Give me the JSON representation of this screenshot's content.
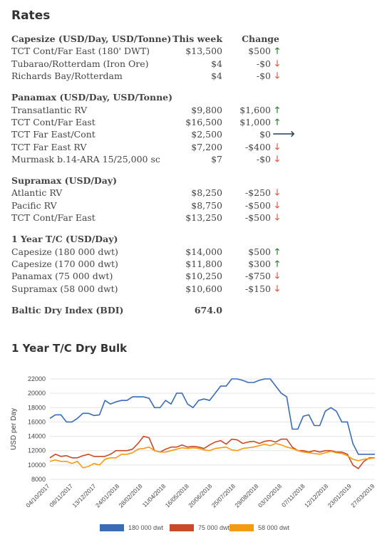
{
  "title": "Rates",
  "sections": [
    {
      "header": {
        "label": "Capesize (USD/Day, USD/Tonne)",
        "week": "This week",
        "change": "Change"
      },
      "rows": [
        {
          "label": "TCT Cont/Far East (180' DWT)",
          "week": "$13,500",
          "change": "$500",
          "dir": "up"
        },
        {
          "label": "Tubarao/Rotterdam (Iron Ore)",
          "week": "$4",
          "change": "-$0",
          "dir": "down"
        },
        {
          "label": "Richards Bay/Rotterdam",
          "week": "$4",
          "change": "-$0",
          "dir": "down"
        }
      ]
    },
    {
      "header": {
        "label": "Panamax (USD/Day, USD/Tonne)"
      },
      "rows": [
        {
          "label": "Transatlantic RV",
          "week": "$9,800",
          "change": "$1,600",
          "dir": "up"
        },
        {
          "label": "TCT Cont/Far East",
          "week": "$16,500",
          "change": "$1,000",
          "dir": "up"
        },
        {
          "label": "TCT Far East/Cont",
          "week": "$2,500",
          "change": "$0",
          "dir": "flat"
        },
        {
          "label": "TCT Far East RV",
          "week": "$7,200",
          "change": "-$400",
          "dir": "down"
        },
        {
          "label": "Murmask b.14-ARA 15/25,000 sc",
          "week": "$7",
          "change": "-$0",
          "dir": "down"
        }
      ]
    },
    {
      "header": {
        "label": "Supramax (USD/Day)"
      },
      "rows": [
        {
          "label": "Atlantic RV",
          "week": "$8,250",
          "change": "-$250",
          "dir": "down"
        },
        {
          "label": "Pacific RV",
          "week": "$8,750",
          "change": "-$500",
          "dir": "down"
        },
        {
          "label": "TCT Cont/Far East",
          "week": "$13,250",
          "change": "-$500",
          "dir": "down"
        }
      ]
    },
    {
      "header": {
        "label": "1 Year T/C (USD/Day)"
      },
      "rows": [
        {
          "label": "Capesize (180 000 dwt)",
          "week": "$14,000",
          "change": "$500",
          "dir": "up"
        },
        {
          "label": "Capesize (170 000 dwt)",
          "week": "$11,800",
          "change": "$300",
          "dir": "up"
        },
        {
          "label": "Panamax (75 000 dwt)",
          "week": "$10,250",
          "change": "-$750",
          "dir": "down"
        },
        {
          "label": "Supramax (58 000 dwt)",
          "week": "$10,600",
          "change": "-$150",
          "dir": "down"
        }
      ]
    },
    {
      "header": {
        "label": "Baltic Dry Index (BDI)",
        "week": "674.0"
      },
      "rows": []
    }
  ],
  "arrows": {
    "up": "🡑",
    "down": "🡓",
    "flat": "🡒"
  },
  "colors": {
    "up": "#2e7d32",
    "down": "#e05a47",
    "flat": "#1f3b57"
  },
  "chart_title": "1 Year T/C Dry Bulk",
  "chart_data": {
    "type": "line",
    "ylabel": "USD per Day",
    "ylim": [
      8000,
      22000
    ],
    "yticks": [
      8000,
      10000,
      12000,
      14000,
      16000,
      18000,
      20000,
      22000
    ],
    "grid": true,
    "legend_position": "bottom",
    "x_tick_labels": [
      "04/10/2017",
      "08/11/2017",
      "13/12/2017",
      "24/01/2018",
      "28/02/2018",
      "11/04/2018",
      "16/05/2018",
      "20/06/2018",
      "25/07/2018",
      "29/08/2018",
      "03/10/2018",
      "07/11/2018",
      "12/12/2018",
      "23/01/2019",
      "27/03/2019"
    ],
    "series": [
      {
        "name": "180 000 dwt",
        "color": "#3c6bb5",
        "values": [
          16500,
          17000,
          17000,
          16000,
          16000,
          16500,
          17200,
          17200,
          16900,
          17000,
          19000,
          18500,
          18800,
          19000,
          19000,
          19500,
          19500,
          19500,
          19300,
          18000,
          18000,
          19000,
          18500,
          20000,
          20000,
          18500,
          18000,
          19000,
          19200,
          19000,
          20000,
          21000,
          21000,
          22000,
          22000,
          21800,
          21500,
          21500,
          21800,
          22000,
          22000,
          21000,
          20000,
          19500,
          15000,
          15000,
          16800,
          17000,
          15500,
          15500,
          17500,
          18000,
          17500,
          16000,
          16000,
          13000,
          11500,
          11500,
          11500,
          11500
        ]
      },
      {
        "name": "75 000 dwt",
        "color": "#c84a2a",
        "values": [
          11000,
          11500,
          11200,
          11300,
          11000,
          11000,
          11300,
          11500,
          11200,
          11200,
          11200,
          11500,
          12000,
          12000,
          12000,
          12200,
          13000,
          14000,
          13800,
          12000,
          11800,
          12200,
          12500,
          12500,
          12800,
          12500,
          12600,
          12500,
          12300,
          12800,
          13200,
          13400,
          12900,
          13600,
          13500,
          13000,
          13200,
          13300,
          13000,
          13300,
          13400,
          13200,
          13600,
          13600,
          12500,
          12000,
          12000,
          11800,
          12000,
          11800,
          12000,
          12000,
          11800,
          11800,
          11500,
          10000,
          9500,
          10500,
          11000,
          11000
        ]
      },
      {
        "name": "58 000 dwt",
        "color": "#f39c12",
        "values": [
          10500,
          10700,
          10500,
          10500,
          10200,
          10500,
          9600,
          9800,
          10200,
          10000,
          10800,
          11000,
          11000,
          11500,
          11500,
          11700,
          12200,
          12300,
          12500,
          12000,
          11800,
          11800,
          12000,
          12200,
          12400,
          12300,
          12400,
          12300,
          12100,
          12000,
          12300,
          12400,
          12500,
          12100,
          12000,
          12300,
          12400,
          12500,
          12700,
          12900,
          12700,
          13000,
          12800,
          12500,
          12300,
          12000,
          11800,
          11700,
          11600,
          11500,
          11700,
          11900,
          11700,
          11600,
          11300,
          10800,
          10600,
          10800,
          10900,
          11000
        ]
      }
    ]
  }
}
